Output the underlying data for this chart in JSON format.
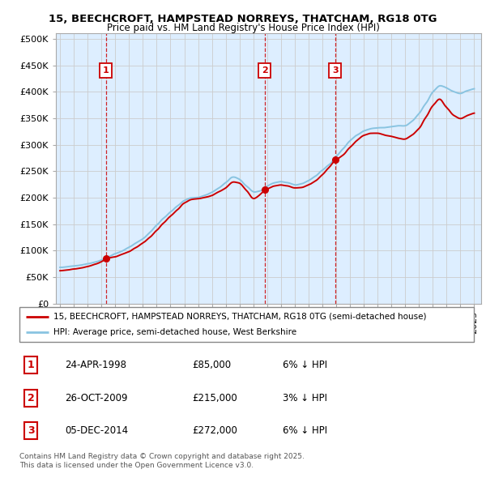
{
  "title_line1": "15, BEECHCROFT, HAMPSTEAD NORREYS, THATCHAM, RG18 0TG",
  "title_line2": "Price paid vs. HM Land Registry's House Price Index (HPI)",
  "legend_property": "15, BEECHCROFT, HAMPSTEAD NORREYS, THATCHAM, RG18 0TG (semi-detached house)",
  "legend_hpi": "HPI: Average price, semi-detached house, West Berkshire",
  "property_color": "#cc0000",
  "hpi_color": "#89c4e1",
  "chart_bg": "#ddeeff",
  "purchases": [
    {
      "num": 1,
      "date": "24-APR-1998",
      "price": 85000,
      "pct": "6%",
      "dir": "↓"
    },
    {
      "num": 2,
      "date": "26-OCT-2009",
      "price": 215000,
      "pct": "3%",
      "dir": "↓"
    },
    {
      "num": 3,
      "date": "05-DEC-2014",
      "price": 272000,
      "pct": "6%",
      "dir": "↓"
    }
  ],
  "purchase_dates_decimal": [
    1998.31,
    2009.82,
    2014.92
  ],
  "purchase_prices": [
    85000,
    215000,
    272000
  ],
  "footer": "Contains HM Land Registry data © Crown copyright and database right 2025.\nThis data is licensed under the Open Government Licence v3.0.",
  "ylim": [
    0,
    510000
  ],
  "yticks": [
    0,
    50000,
    100000,
    150000,
    200000,
    250000,
    300000,
    350000,
    400000,
    450000,
    500000
  ],
  "xlim_start": 1994.7,
  "xlim_end": 2025.5,
  "background_color": "#ffffff",
  "grid_color": "#cccccc",
  "hpi_anchors": {
    "1995.0": 68000,
    "1995.5": 69500,
    "1996.0": 71000,
    "1996.5": 72500,
    "1997.0": 75000,
    "1997.5": 78000,
    "1998.0": 82000,
    "1998.5": 88000,
    "1999.0": 94000,
    "1999.5": 99000,
    "2000.0": 106000,
    "2000.5": 114000,
    "2001.0": 122000,
    "2001.5": 134000,
    "2002.0": 148000,
    "2002.5": 161000,
    "2003.0": 173000,
    "2003.5": 184000,
    "2004.0": 195000,
    "2004.5": 200000,
    "2005.0": 200000,
    "2005.5": 204000,
    "2006.0": 210000,
    "2006.5": 218000,
    "2007.0": 228000,
    "2007.5": 240000,
    "2008.0": 235000,
    "2008.5": 222000,
    "2009.0": 210000,
    "2009.5": 212000,
    "2010.0": 222000,
    "2010.5": 228000,
    "2011.0": 230000,
    "2011.5": 228000,
    "2012.0": 224000,
    "2012.5": 226000,
    "2013.0": 232000,
    "2013.5": 240000,
    "2014.0": 252000,
    "2014.5": 262000,
    "2015.0": 278000,
    "2015.5": 292000,
    "2016.0": 308000,
    "2016.5": 318000,
    "2017.0": 326000,
    "2017.5": 330000,
    "2018.0": 332000,
    "2018.5": 332000,
    "2019.0": 334000,
    "2019.5": 336000,
    "2020.0": 335000,
    "2020.5": 344000,
    "2021.0": 358000,
    "2021.5": 378000,
    "2022.0": 400000,
    "2022.5": 412000,
    "2023.0": 408000,
    "2023.5": 400000,
    "2024.0": 396000,
    "2024.5": 402000,
    "2025.0": 406000
  },
  "prop_anchors": {
    "1995.0": 62000,
    "1995.5": 63500,
    "1996.0": 65000,
    "1996.5": 67000,
    "1997.0": 70000,
    "1997.5": 74000,
    "1998.0": 78000,
    "1998.31": 85000,
    "1999.0": 88000,
    "1999.5": 93000,
    "2000.0": 98000,
    "2000.5": 106000,
    "2001.0": 114000,
    "2001.5": 125000,
    "2002.0": 138000,
    "2002.5": 152000,
    "2003.0": 165000,
    "2003.5": 177000,
    "2004.0": 190000,
    "2004.5": 197000,
    "2005.0": 198000,
    "2005.5": 200000,
    "2006.0": 204000,
    "2006.5": 211000,
    "2007.0": 218000,
    "2007.5": 230000,
    "2008.0": 228000,
    "2008.5": 214000,
    "2009.0": 196000,
    "2009.5": 205000,
    "2009.82": 215000,
    "2010.0": 216000,
    "2010.5": 222000,
    "2011.0": 224000,
    "2011.5": 222000,
    "2012.0": 218000,
    "2012.5": 219000,
    "2013.0": 224000,
    "2013.5": 231000,
    "2014.0": 243000,
    "2014.5": 257000,
    "2014.92": 272000,
    "2015.0": 272000,
    "2015.5": 280000,
    "2016.0": 295000,
    "2016.5": 308000,
    "2017.0": 318000,
    "2017.5": 322000,
    "2018.0": 322000,
    "2018.5": 318000,
    "2019.0": 316000,
    "2019.5": 312000,
    "2020.0": 310000,
    "2020.5": 318000,
    "2021.0": 330000,
    "2021.5": 352000,
    "2022.0": 374000,
    "2022.5": 388000,
    "2023.0": 370000,
    "2023.5": 355000,
    "2024.0": 348000,
    "2024.5": 355000,
    "2025.0": 360000
  }
}
